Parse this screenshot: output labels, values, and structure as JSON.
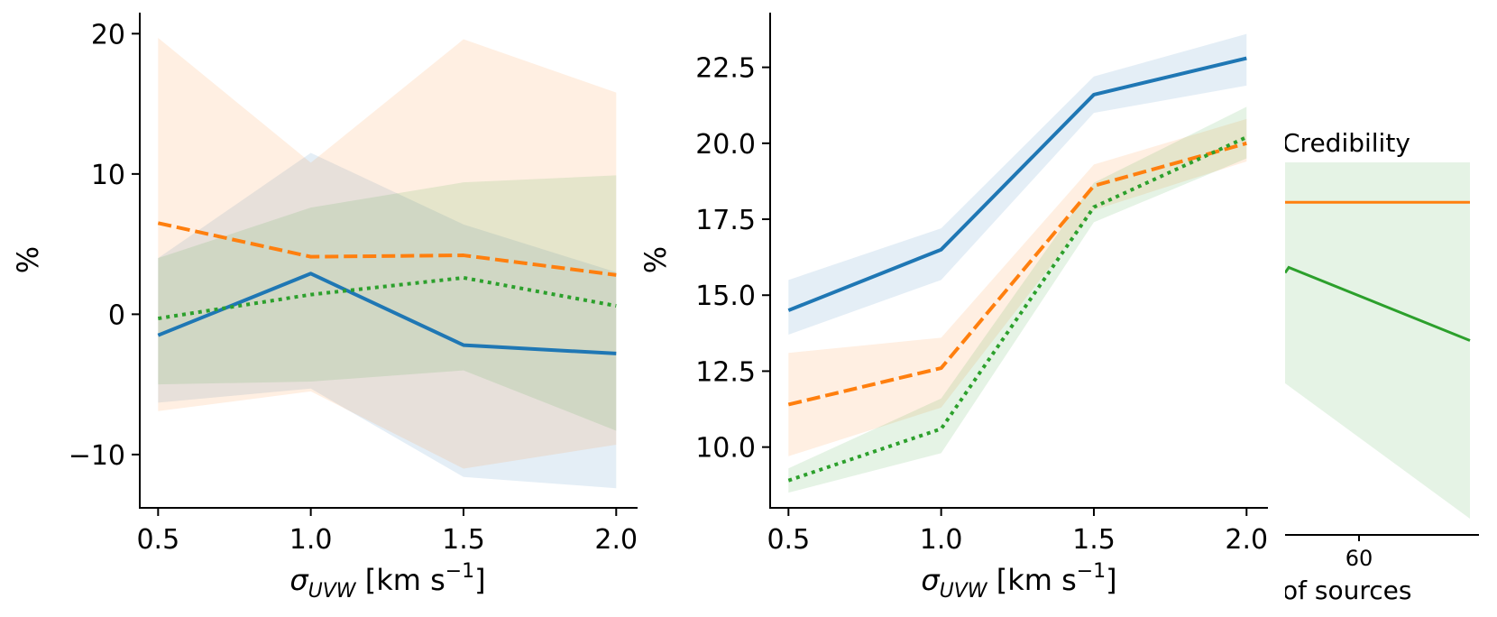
{
  "chart_data": [
    {
      "type": "line",
      "title": "",
      "xlabel": "σUVW [km s−1]",
      "ylabel": "%",
      "xlim": [
        0.44,
        2.07
      ],
      "ylim": [
        -13.8,
        21.5
      ],
      "xticks": [
        "0.5",
        "1.0",
        "1.5",
        "2.0"
      ],
      "yticks": [
        "−10",
        "0",
        "10",
        "20"
      ],
      "grid": false,
      "legend": "none",
      "x": [
        0.5,
        1.0,
        1.5,
        2.0
      ],
      "series": [
        {
          "name": "blue",
          "color": "#1f77b4",
          "style": "solid",
          "values": [
            -1.5,
            2.9,
            -2.2,
            -2.8
          ],
          "band_lower": [
            -6.3,
            -5.3,
            -11.6,
            -12.4
          ],
          "band_upper": [
            4.0,
            11.5,
            6.4,
            3.0
          ]
        },
        {
          "name": "orange",
          "color": "#ff7f0e",
          "style": "dashed",
          "values": [
            6.5,
            4.1,
            4.2,
            2.8
          ],
          "band_lower": [
            -6.9,
            -5.5,
            -11.0,
            -9.3
          ],
          "band_upper": [
            19.7,
            10.8,
            19.6,
            15.8
          ]
        },
        {
          "name": "green",
          "color": "#2ca02c",
          "style": "dotted",
          "values": [
            -0.3,
            1.4,
            2.6,
            0.6
          ],
          "band_lower": [
            -5.0,
            -4.8,
            -4.0,
            -8.3
          ],
          "band_upper": [
            4.0,
            7.6,
            9.4,
            9.9
          ]
        }
      ]
    },
    {
      "type": "line",
      "title": "",
      "xlabel": "σUVW [km s−1]",
      "ylabel": "%",
      "xlim": [
        0.44,
        2.07
      ],
      "ylim": [
        8.0,
        24.3
      ],
      "xticks": [
        "0.5",
        "1.0",
        "1.5",
        "2.0"
      ],
      "yticks": [
        "10.0",
        "12.5",
        "15.0",
        "17.5",
        "20.0",
        "22.5"
      ],
      "grid": false,
      "legend": "none",
      "x": [
        0.5,
        1.0,
        1.5,
        2.0
      ],
      "series": [
        {
          "name": "blue",
          "color": "#1f77b4",
          "style": "solid",
          "values": [
            14.5,
            16.5,
            21.6,
            22.8
          ],
          "band_lower": [
            13.7,
            15.5,
            21.0,
            21.9
          ],
          "band_upper": [
            15.5,
            17.2,
            22.2,
            23.6
          ]
        },
        {
          "name": "orange",
          "color": "#ff7f0e",
          "style": "dashed",
          "values": [
            11.4,
            12.6,
            18.6,
            20.0
          ],
          "band_lower": [
            9.7,
            11.3,
            17.8,
            19.4
          ],
          "band_upper": [
            13.1,
            13.6,
            19.3,
            20.8
          ]
        },
        {
          "name": "green",
          "color": "#2ca02c",
          "style": "dotted",
          "values": [
            8.9,
            10.6,
            17.9,
            20.2
          ],
          "band_lower": [
            8.5,
            9.8,
            17.4,
            19.5
          ],
          "band_upper": [
            9.3,
            11.6,
            18.7,
            21.2
          ]
        }
      ]
    },
    {
      "type": "line",
      "title": "Credibility",
      "xlabel": "of sources",
      "xticks": [
        "60"
      ],
      "partial": true,
      "grid": false,
      "legend": "none",
      "series": [
        {
          "name": "orange",
          "color": "#ff7f0e",
          "style": "solid",
          "points": [
            [
              0,
              0.112
            ],
            [
              1,
              0.112
            ]
          ]
        },
        {
          "name": "green",
          "color": "#2ca02c",
          "style": "solid",
          "points": [
            [
              0,
              0.31
            ],
            [
              0.02,
              0.295
            ],
            [
              1,
              0.5
            ]
          ],
          "band_lower": [
            [
              0,
              0.62
            ],
            [
              1,
              1.0
            ]
          ],
          "band_upper": [
            [
              0,
              0.0
            ],
            [
              1,
              0.0
            ]
          ]
        }
      ]
    }
  ]
}
